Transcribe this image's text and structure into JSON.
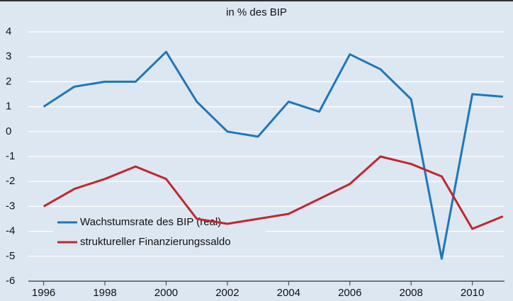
{
  "chart_data": {
    "type": "line",
    "title": "in % des BIP",
    "x": [
      1996,
      1997,
      1998,
      1999,
      2000,
      2001,
      2002,
      2003,
      2004,
      2005,
      2006,
      2007,
      2008,
      2009,
      2010,
      2011
    ],
    "series": [
      {
        "name": "Wachstumsrate des BIP (real)",
        "color": "#1f77b8",
        "values": [
          1.0,
          1.8,
          2.0,
          2.0,
          3.2,
          1.2,
          0.0,
          -0.2,
          1.2,
          0.8,
          3.1,
          2.5,
          1.3,
          -5.1,
          1.5,
          1.4
        ]
      },
      {
        "name": "struktureller Finanzierungssaldo",
        "color": "#c0272d",
        "values": [
          -3.0,
          -2.3,
          -1.9,
          -1.4,
          -1.9,
          -3.5,
          -3.7,
          -3.5,
          -3.3,
          -2.7,
          -2.1,
          -1.0,
          -1.3,
          -1.8,
          -3.9,
          -3.4
        ]
      }
    ],
    "xlim": [
      1995.5,
      2011.05
    ],
    "xticks": [
      1996,
      1998,
      2000,
      2002,
      2004,
      2006,
      2008,
      2010
    ],
    "ylim": [
      -6,
      4
    ],
    "yticks": [
      -6,
      -5,
      -4,
      -3,
      -2,
      -1,
      0,
      1,
      2,
      3,
      4
    ],
    "grid": true,
    "legend": "lower-left"
  }
}
